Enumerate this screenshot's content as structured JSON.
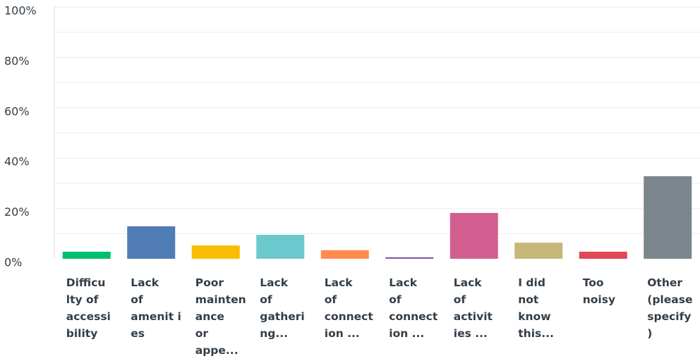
{
  "chart_data": {
    "type": "bar",
    "categories": [
      "Difficu\nlty of\naccessi\nbility",
      "Lack\nof\namenit i\nes",
      "Poor\nmainten\nance\nor\nappe...",
      "Lack\nof\ngatheri\nng...",
      "Lack\nof\nconnect\nion ...",
      "Lack\nof\nconnect\nion ...",
      "Lack\nof\nactivit\nies ...",
      "I did\nnot\nknow\nthis...",
      "Too\nnoisy",
      "Other\n(please\nspecify\n)"
    ],
    "values": [
      2.8,
      12.9,
      5.3,
      9.5,
      3.4,
      0.6,
      18.2,
      6.4,
      2.8,
      32.8
    ],
    "colors": [
      "#00bf6f",
      "#507cb6",
      "#f9be00",
      "#6bc8cd",
      "#ff8b4f",
      "#7d5ba6",
      "#d25f90",
      "#c7b879",
      "#e04856",
      "#7b868c"
    ],
    "ylim": [
      0,
      100
    ],
    "yticks": [
      {
        "value": 0,
        "label": "0%"
      },
      {
        "value": 20,
        "label": "20%"
      },
      {
        "value": 40,
        "label": "40%"
      },
      {
        "value": 60,
        "label": "60%"
      },
      {
        "value": 80,
        "label": "80%"
      },
      {
        "value": 100,
        "label": "100%"
      }
    ],
    "minor_yticks": [
      10,
      30,
      50,
      70,
      90
    ],
    "grid": true
  }
}
